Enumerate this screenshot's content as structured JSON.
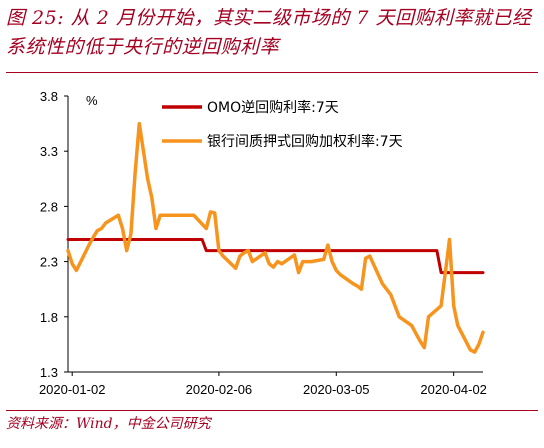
{
  "header": {
    "title": "图 25: 从 2 月份开始，其实二级市场的 7 天回购利率就已经系统性的低于央行的逆回购利率"
  },
  "footer": {
    "source": "资料来源：Wind，中金公司研究"
  },
  "colors": {
    "brand": "#a50021",
    "omo": "#c00000",
    "repo": "#f7941d"
  },
  "chart_data": {
    "type": "line",
    "ylabel": "%",
    "ylim": [
      1.3,
      3.8
    ],
    "yticks": [
      "1.3",
      "1.8",
      "2.3",
      "2.8",
      "3.3",
      "3.8"
    ],
    "xlim": [
      "2020-01-01",
      "2020-04-09"
    ],
    "xticks": [
      "2020-01-02",
      "2020-02-06",
      "2020-03-05",
      "2020-04-02"
    ],
    "legend_position": "top-right",
    "series": [
      {
        "name": "OMO逆回购利率:7天",
        "color": "#c00000",
        "points": [
          [
            "2020-01-01",
            2.5
          ],
          [
            "2020-02-02",
            2.5
          ],
          [
            "2020-02-03",
            2.4
          ],
          [
            "2020-03-29",
            2.4
          ],
          [
            "2020-03-30",
            2.2
          ],
          [
            "2020-04-09",
            2.2
          ]
        ]
      },
      {
        "name": "银行间质押式回购加权利率:7天",
        "color": "#f7941d",
        "points": [
          [
            "2020-01-01",
            2.4
          ],
          [
            "2020-01-02",
            2.28
          ],
          [
            "2020-01-03",
            2.22
          ],
          [
            "2020-01-06",
            2.45
          ],
          [
            "2020-01-07",
            2.52
          ],
          [
            "2020-01-08",
            2.58
          ],
          [
            "2020-01-09",
            2.6
          ],
          [
            "2020-01-10",
            2.65
          ],
          [
            "2020-01-13",
            2.72
          ],
          [
            "2020-01-14",
            2.6
          ],
          [
            "2020-01-15",
            2.4
          ],
          [
            "2020-01-16",
            2.55
          ],
          [
            "2020-01-17",
            3.1
          ],
          [
            "2020-01-18",
            3.55
          ],
          [
            "2020-01-20",
            3.05
          ],
          [
            "2020-01-21",
            2.88
          ],
          [
            "2020-01-22",
            2.6
          ],
          [
            "2020-01-23",
            2.72
          ],
          [
            "2020-01-31",
            2.72
          ],
          [
            "2020-02-03",
            2.6
          ],
          [
            "2020-02-04",
            2.75
          ],
          [
            "2020-02-05",
            2.74
          ],
          [
            "2020-02-06",
            2.4
          ],
          [
            "2020-02-07",
            2.35
          ],
          [
            "2020-02-10",
            2.24
          ],
          [
            "2020-02-11",
            2.35
          ],
          [
            "2020-02-12",
            2.38
          ],
          [
            "2020-02-13",
            2.4
          ],
          [
            "2020-02-14",
            2.3
          ],
          [
            "2020-02-17",
            2.38
          ],
          [
            "2020-02-18",
            2.28
          ],
          [
            "2020-02-19",
            2.25
          ],
          [
            "2020-02-20",
            2.3
          ],
          [
            "2020-02-21",
            2.28
          ],
          [
            "2020-02-24",
            2.36
          ],
          [
            "2020-02-25",
            2.2
          ],
          [
            "2020-02-26",
            2.3
          ],
          [
            "2020-02-27",
            2.3
          ],
          [
            "2020-02-28",
            2.3
          ],
          [
            "2020-03-02",
            2.32
          ],
          [
            "2020-03-03",
            2.45
          ],
          [
            "2020-03-04",
            2.3
          ],
          [
            "2020-03-05",
            2.22
          ],
          [
            "2020-03-06",
            2.18
          ],
          [
            "2020-03-09",
            2.1
          ],
          [
            "2020-03-10",
            2.08
          ],
          [
            "2020-03-11",
            2.05
          ],
          [
            "2020-03-12",
            2.33
          ],
          [
            "2020-03-13",
            2.35
          ],
          [
            "2020-03-16",
            2.1
          ],
          [
            "2020-03-17",
            2.05
          ],
          [
            "2020-03-18",
            2.0
          ],
          [
            "2020-03-19",
            1.9
          ],
          [
            "2020-03-20",
            1.8
          ],
          [
            "2020-03-23",
            1.72
          ],
          [
            "2020-03-24",
            1.65
          ],
          [
            "2020-03-25",
            1.58
          ],
          [
            "2020-03-26",
            1.52
          ],
          [
            "2020-03-27",
            1.8
          ],
          [
            "2020-03-30",
            1.9
          ],
          [
            "2020-03-31",
            2.2
          ],
          [
            "2020-04-01",
            2.5
          ],
          [
            "2020-04-02",
            1.9
          ],
          [
            "2020-04-03",
            1.72
          ],
          [
            "2020-04-06",
            1.5
          ],
          [
            "2020-04-07",
            1.48
          ],
          [
            "2020-04-08",
            1.55
          ],
          [
            "2020-04-09",
            1.66
          ]
        ]
      }
    ]
  }
}
